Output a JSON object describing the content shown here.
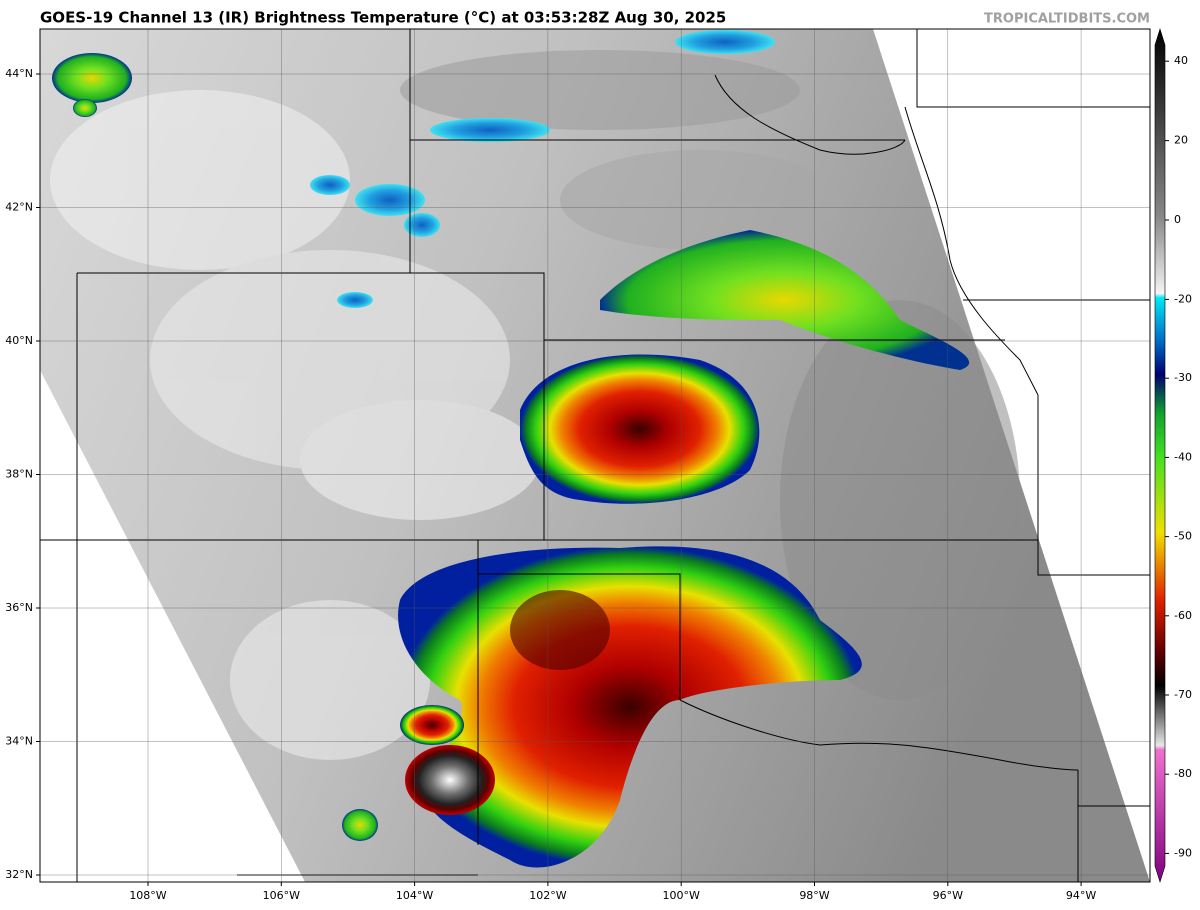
{
  "header": {
    "title": "GOES-19 Channel 13 (IR) Brightness Temperature (°C) at 03:53:28Z Aug 30, 2025",
    "watermark": "TROPICALTIDBITS.COM"
  },
  "map": {
    "lat_labels": [
      "44°N",
      "42°N",
      "40°N",
      "38°N",
      "36°N",
      "34°N",
      "32°N"
    ],
    "lon_labels": [
      "108°W",
      "106°W",
      "104°W",
      "102°W",
      "100°W",
      "98°W",
      "96°W",
      "94°W"
    ]
  },
  "colorbar": {
    "ticks": [
      40,
      20,
      0,
      -20,
      -30,
      -40,
      -50,
      -60,
      -70,
      -80,
      -90
    ]
  }
}
